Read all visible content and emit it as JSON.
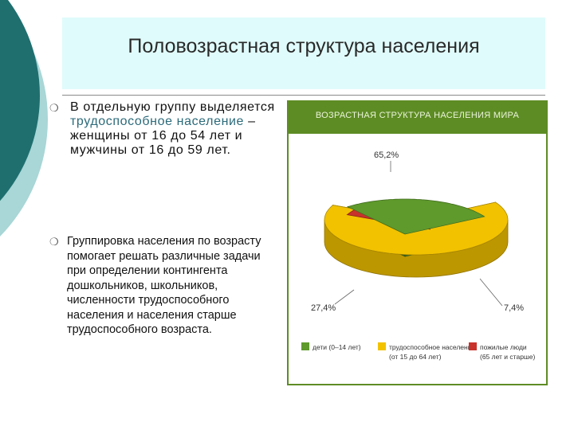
{
  "slide": {
    "title": "Половозрастная структура населения",
    "bullet1": {
      "text_before": "В отдельную группу выделяется ",
      "highlight": "трудоспособное население",
      "text_after": " – женщины от 16 до 54 лет и мужчины от 16 до 59 лет."
    },
    "bullet2": "Группировка населения по возрасту помогает решать различные задачи при определении контингента дошкольников, школьников, численности трудоспособного населения и населения старше трудоспособного возраста.",
    "bullet_symbol": "❍"
  },
  "chart_data": {
    "type": "pie",
    "title": "ВОЗРАСТНАЯ СТРУКТУРА НАСЕЛЕНИЯ МИРА",
    "slices": [
      {
        "label": "трудоспособное население (от 15 до 64 лет)",
        "label_line1": "трудоспособное население",
        "label_line2": "(от 15 до 64 лет)",
        "value": 65.2,
        "value_text": "65,2%",
        "color": "#f2c200"
      },
      {
        "label": "пожилые люди (65 лет и старше)",
        "label_line1": "пожилые люди",
        "label_line2": "(65 лет и старше)",
        "value": 7.4,
        "value_text": "7,4%",
        "color": "#c8322b"
      },
      {
        "label": "дети (0–14 лет)",
        "label_line1": "дети (0–14 лет)",
        "label_line2": "",
        "value": 27.4,
        "value_text": "27,4%",
        "color": "#5e9a2c"
      }
    ]
  }
}
